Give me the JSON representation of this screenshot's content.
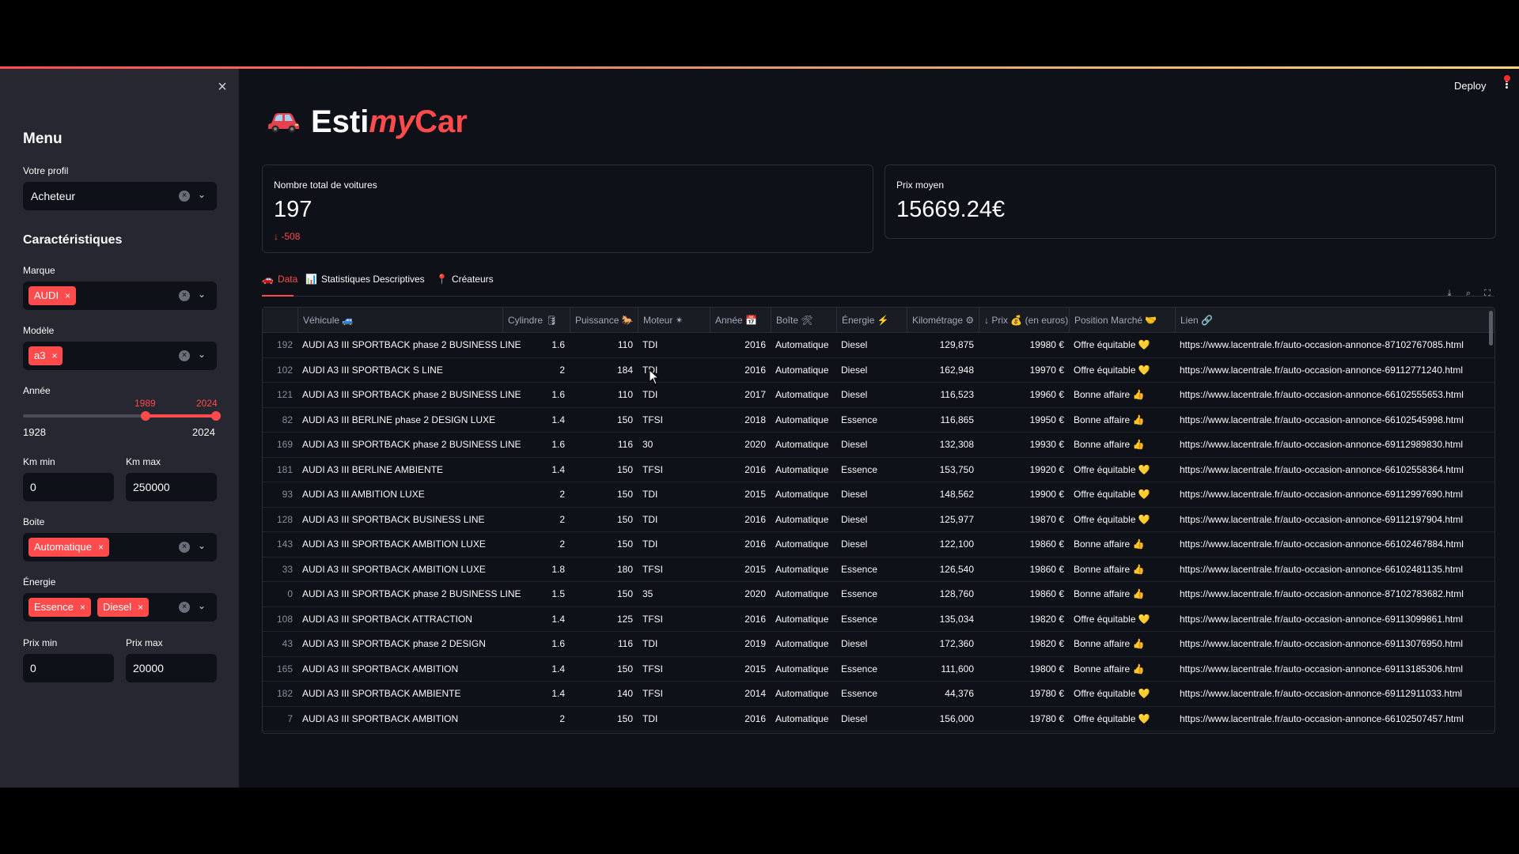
{
  "sidebar": {
    "menu_title": "Menu",
    "profile_label": "Votre profil",
    "profile_value": "Acheteur",
    "features_title": "Caractéristiques",
    "brand_label": "Marque",
    "brand_tags": [
      "AUDI"
    ],
    "model_label": "Modèle",
    "model_tags": [
      "a3"
    ],
    "year_label": "Année",
    "year_min_sel": "1989",
    "year_max_sel": "2024",
    "year_range_min": "1928",
    "year_range_max": "2024",
    "year_lo": 1989,
    "year_hi": 2024,
    "year_min": 1928,
    "year_max": 2024,
    "km_min_label": "Km min",
    "km_min_value": "0",
    "km_max_label": "Km max",
    "km_max_value": "250000",
    "gearbox_label": "Boite",
    "gearbox_tags": [
      "Automatique"
    ],
    "energy_label": "Énergie",
    "energy_tags": [
      "Essence",
      "Diesel"
    ],
    "price_min_label": "Prix min",
    "price_min_value": "0",
    "price_max_label": "Prix max",
    "price_max_value": "20000"
  },
  "header": {
    "deploy_label": "Deploy"
  },
  "app_title": {
    "part1": "Esti",
    "part2": "my",
    "part3": "Car"
  },
  "metrics": [
    {
      "label": "Nombre total de voitures",
      "value": "197",
      "delta": "-508"
    },
    {
      "label": "Prix moyen",
      "value": "15669.24€"
    }
  ],
  "tabs": [
    {
      "icon": "🚗",
      "label": "Data"
    },
    {
      "icon": "📊",
      "label": "Statistiques Descriptives"
    },
    {
      "icon": "📍",
      "label": "Créateurs"
    }
  ],
  "table": {
    "columns": [
      "",
      "Véhicule 🚙",
      "Cylindre 🛢",
      "Puissance 🐎",
      "Moteur ✴",
      "Année 📅",
      "Boîte 🛠",
      "Énergie ⚡",
      "Kilométrage ⚙",
      "↓ Prix 💰 (en euros)",
      "Position Marché 🤝",
      "Lien 🔗"
    ],
    "rows": [
      [
        "192",
        "AUDI A3 III SPORTBACK phase 2 BUSINESS LINE",
        "1.6",
        "110",
        "TDI",
        "2016",
        "Automatique",
        "Diesel",
        "129,875",
        "19980 €",
        "Offre équitable 💛",
        "https://www.lacentrale.fr/auto-occasion-annonce-87102767085.html"
      ],
      [
        "102",
        "AUDI A3 III SPORTBACK S LINE",
        "2",
        "184",
        "TDI",
        "2016",
        "Automatique",
        "Diesel",
        "162,948",
        "19970 €",
        "Offre équitable 💛",
        "https://www.lacentrale.fr/auto-occasion-annonce-69112771240.html"
      ],
      [
        "121",
        "AUDI A3 III SPORTBACK phase 2 BUSINESS LINE",
        "1.6",
        "110",
        "TDI",
        "2017",
        "Automatique",
        "Diesel",
        "116,523",
        "19960 €",
        "Bonne affaire 👍",
        "https://www.lacentrale.fr/auto-occasion-annonce-66102555653.html"
      ],
      [
        "82",
        "AUDI A3 III BERLINE phase 2 DESIGN LUXE",
        "1.4",
        "150",
        "TFSI",
        "2018",
        "Automatique",
        "Essence",
        "116,865",
        "19950 €",
        "Bonne affaire 👍",
        "https://www.lacentrale.fr/auto-occasion-annonce-66102545998.html"
      ],
      [
        "169",
        "AUDI A3 III SPORTBACK phase 2 BUSINESS LINE",
        "1.6",
        "116",
        "30",
        "2020",
        "Automatique",
        "Diesel",
        "132,308",
        "19930 €",
        "Bonne affaire 👍",
        "https://www.lacentrale.fr/auto-occasion-annonce-69112989830.html"
      ],
      [
        "181",
        "AUDI A3 III BERLINE AMBIENTE",
        "1.4",
        "150",
        "TFSI",
        "2016",
        "Automatique",
        "Essence",
        "153,750",
        "19920 €",
        "Offre équitable 💛",
        "https://www.lacentrale.fr/auto-occasion-annonce-66102558364.html"
      ],
      [
        "93",
        "AUDI A3 III AMBITION LUXE",
        "2",
        "150",
        "TDI",
        "2015",
        "Automatique",
        "Diesel",
        "148,562",
        "19900 €",
        "Offre équitable 💛",
        "https://www.lacentrale.fr/auto-occasion-annonce-69112997690.html"
      ],
      [
        "128",
        "AUDI A3 III SPORTBACK BUSINESS LINE",
        "2",
        "150",
        "TDI",
        "2016",
        "Automatique",
        "Diesel",
        "125,977",
        "19870 €",
        "Offre équitable 💛",
        "https://www.lacentrale.fr/auto-occasion-annonce-69112197904.html"
      ],
      [
        "143",
        "AUDI A3 III SPORTBACK AMBITION LUXE",
        "2",
        "150",
        "TDI",
        "2016",
        "Automatique",
        "Diesel",
        "122,100",
        "19860 €",
        "Bonne affaire 👍",
        "https://www.lacentrale.fr/auto-occasion-annonce-66102467884.html"
      ],
      [
        "33",
        "AUDI A3 III SPORTBACK AMBITION LUXE",
        "1.8",
        "180",
        "TFSI",
        "2015",
        "Automatique",
        "Essence",
        "126,540",
        "19860 €",
        "Bonne affaire 👍",
        "https://www.lacentrale.fr/auto-occasion-annonce-66102481135.html"
      ],
      [
        "0",
        "AUDI A3 III SPORTBACK phase 2 BUSINESS LINE",
        "1.5",
        "150",
        "35",
        "2020",
        "Automatique",
        "Essence",
        "128,760",
        "19860 €",
        "Bonne affaire 👍",
        "https://www.lacentrale.fr/auto-occasion-annonce-87102783682.html"
      ],
      [
        "108",
        "AUDI A3 III SPORTBACK ATTRACTION",
        "1.4",
        "125",
        "TFSI",
        "2016",
        "Automatique",
        "Essence",
        "135,034",
        "19820 €",
        "Offre équitable 💛",
        "https://www.lacentrale.fr/auto-occasion-annonce-69113099861.html"
      ],
      [
        "43",
        "AUDI A3 III SPORTBACK phase 2 DESIGN",
        "1.6",
        "116",
        "TDI",
        "2019",
        "Automatique",
        "Diesel",
        "172,360",
        "19820 €",
        "Bonne affaire 👍",
        "https://www.lacentrale.fr/auto-occasion-annonce-69113076950.html"
      ],
      [
        "165",
        "AUDI A3 III SPORTBACK AMBITION",
        "1.4",
        "150",
        "TFSI",
        "2015",
        "Automatique",
        "Essence",
        "111,600",
        "19800 €",
        "Bonne affaire 👍",
        "https://www.lacentrale.fr/auto-occasion-annonce-69113185306.html"
      ],
      [
        "182",
        "AUDI A3 III SPORTBACK AMBIENTE",
        "1.4",
        "140",
        "TFSI",
        "2014",
        "Automatique",
        "Essence",
        "44,376",
        "19780 €",
        "Offre équitable 💛",
        "https://www.lacentrale.fr/auto-occasion-annonce-69112911033.html"
      ],
      [
        "7",
        "AUDI A3 III SPORTBACK AMBITION",
        "2",
        "150",
        "TDI",
        "2016",
        "Automatique",
        "Diesel",
        "156,000",
        "19780 €",
        "Offre équitable 💛",
        "https://www.lacentrale.fr/auto-occasion-annonce-66102507457.html"
      ]
    ]
  },
  "colors": {
    "accent": "#ff4b4b",
    "bg": "#0e1117",
    "sidebar": "#262730"
  },
  "icons": [
    "close-icon",
    "clear-icon",
    "chevron-down-icon",
    "car-icon",
    "arrow-down-icon",
    "download-icon",
    "search-icon",
    "fullscreen-icon"
  ]
}
